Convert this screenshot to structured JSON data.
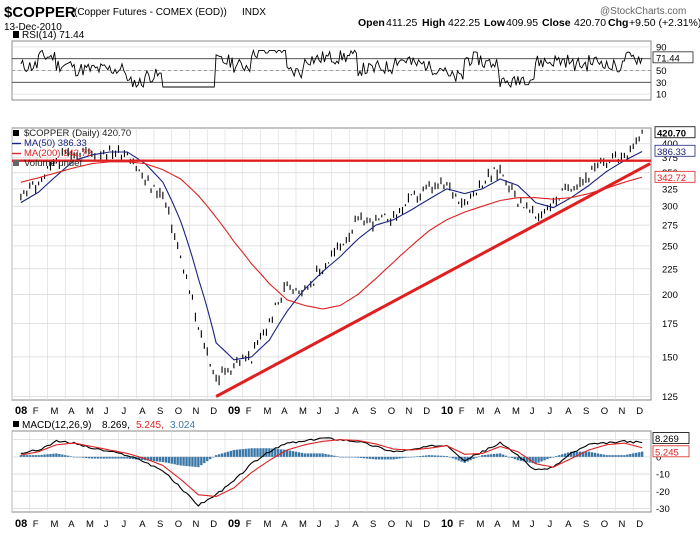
{
  "header": {
    "symbol": "$COPPER",
    "description": "(Copper Futures - COMEX (EOD))",
    "exchange": "INDX",
    "date": "13-Dec-2010",
    "open_label": "Open",
    "open": "411.25",
    "high_label": "High",
    "high": "422.25",
    "low_label": "Low",
    "low": "409.95",
    "close_label": "Close",
    "close": "420.70",
    "chg_label": "Chg",
    "chg": "+9.50 (+2.31%)",
    "source": "@StockCharts.com"
  },
  "colors": {
    "price": "#000000",
    "ma50": "#1a237e",
    "ma200": "#dd2222",
    "trend": "#e02020",
    "macd_hist": "#3b78a8",
    "grid": "#d8d8d8"
  },
  "x_axis": {
    "labels": [
      "08",
      "F",
      "M",
      "A",
      "M",
      "J",
      "J",
      "A",
      "S",
      "O",
      "N",
      "D",
      "09",
      "F",
      "M",
      "A",
      "M",
      "J",
      "J",
      "A",
      "S",
      "O",
      "N",
      "D",
      "10",
      "F",
      "M",
      "A",
      "M",
      "J",
      "J",
      "A",
      "S",
      "O",
      "N",
      "D"
    ],
    "bold_labels": [
      "08",
      "09",
      "10"
    ]
  },
  "chart_data": [
    {
      "type": "line",
      "name": "RSI panel",
      "title": "RSI(14) 71.44",
      "current_value_label": "71.44",
      "ylim": [
        0,
        100
      ],
      "yticks": [
        90,
        70,
        50,
        30,
        10
      ],
      "reference_lines": [
        70,
        30
      ],
      "grid": true
    },
    {
      "type": "line",
      "name": "Price panel",
      "title": "$COPPER (Daily) 420.70",
      "legend": [
        {
          "label": "$COPPER (Daily) 420.70",
          "color": "#000000"
        },
        {
          "label": "MA(50) 386.33",
          "color": "#1a237e"
        },
        {
          "label": "MA(200) 342.72",
          "color": "#dd2222"
        },
        {
          "label": "Volume undef",
          "color": "#555555"
        }
      ],
      "legend_placement": "top-left",
      "scale": "log",
      "ylim": [
        123,
        430
      ],
      "yticks": [
        400,
        375,
        350,
        325,
        300,
        275,
        250,
        225,
        200,
        175,
        150,
        125
      ],
      "right_badges": [
        {
          "value": 420.7,
          "label": "420.70",
          "color": "#000000"
        },
        {
          "value": 386.33,
          "label": "386.33",
          "color": "#1a237e"
        },
        {
          "value": 342.72,
          "label": "342.72",
          "color": "#dd2222"
        }
      ],
      "x_months": [
        "Jan 08",
        "Feb 08",
        "Mar 08",
        "Apr 08",
        "May 08",
        "Jun 08",
        "Jul 08",
        "Aug 08",
        "Sep 08",
        "Oct 08",
        "Nov 08",
        "Dec 08",
        "Jan 09",
        "Feb 09",
        "Mar 09",
        "Apr 09",
        "May 09",
        "Jun 09",
        "Jul 09",
        "Aug 09",
        "Sep 09",
        "Oct 09",
        "Nov 09",
        "Dec 09",
        "Jan 10",
        "Feb 10",
        "Mar 10",
        "Apr 10",
        "May 10",
        "Jun 10",
        "Jul 10",
        "Aug 10",
        "Sep 10",
        "Oct 10",
        "Nov 10",
        "Dec 10"
      ],
      "series": [
        {
          "key": "price",
          "values": [
            320,
            330,
            370,
            385,
            385,
            385,
            385,
            335,
            315,
            235,
            170,
            135,
            145,
            150,
            175,
            210,
            205,
            225,
            250,
            280,
            280,
            285,
            310,
            325,
            330,
            305,
            335,
            355,
            310,
            285,
            305,
            330,
            345,
            370,
            380,
            420
          ]
        },
        {
          "key": "ma50",
          "values": [
            305,
            320,
            345,
            370,
            380,
            385,
            385,
            365,
            335,
            280,
            215,
            160,
            148,
            150,
            162,
            185,
            205,
            222,
            238,
            258,
            275,
            282,
            295,
            310,
            325,
            318,
            325,
            340,
            330,
            305,
            298,
            312,
            330,
            352,
            370,
            386
          ]
        },
        {
          "key": "ma200",
          "values": [
            335,
            342,
            350,
            358,
            365,
            368,
            368,
            365,
            355,
            340,
            315,
            285,
            255,
            230,
            210,
            195,
            190,
            187,
            190,
            200,
            215,
            232,
            250,
            268,
            282,
            292,
            300,
            308,
            312,
            312,
            310,
            312,
            318,
            326,
            335,
            343
          ]
        }
      ],
      "annotations": [
        {
          "type": "horizontal",
          "value": 370
        },
        {
          "type": "trendline",
          "from": {
            "x": "Dec 08",
            "y": 125
          },
          "to": {
            "x": "Dec 10",
            "y": 365
          }
        }
      ],
      "grid": true
    },
    {
      "type": "line",
      "name": "MACD panel",
      "title": "MACD(12,26,9) 8.269, 5.245, 3.024",
      "title_parts": [
        {
          "text": "MACD(12,26,9)",
          "color": "#000000"
        },
        {
          "text": " 8.269,",
          "color": "#000000"
        },
        {
          "text": " 5.245,",
          "color": "#dd2222"
        },
        {
          "text": " 3.024",
          "color": "#3b78a8"
        }
      ],
      "ylim": [
        -32,
        15
      ],
      "yticks": [
        10,
        0,
        -10,
        -20,
        -30
      ],
      "right_badges": [
        {
          "value": 8.269,
          "label": "8.269",
          "color": "#000000"
        },
        {
          "value": 5.245,
          "label": "5.245",
          "color": "#dd2222"
        }
      ],
      "series": [
        {
          "key": "macd",
          "values": [
            2,
            4,
            9,
            8,
            5,
            3,
            1,
            -3,
            -8,
            -18,
            -28,
            -22,
            -14,
            -4,
            3,
            8,
            9,
            11,
            10,
            9,
            6,
            3,
            4,
            6,
            7,
            -2,
            3,
            8,
            1,
            -8,
            -6,
            2,
            7,
            8,
            9,
            8.269
          ]
        },
        {
          "key": "signal",
          "values": [
            1,
            3,
            7,
            8,
            6,
            4,
            2,
            -1,
            -5,
            -13,
            -22,
            -23,
            -18,
            -9,
            -2,
            4,
            7,
            9,
            10,
            9.5,
            7.5,
            4.5,
            4,
            5,
            6.5,
            1.5,
            2,
            6,
            3,
            -4,
            -6,
            -1,
            4,
            7,
            8,
            5.245
          ]
        }
      ],
      "grid": true
    }
  ]
}
